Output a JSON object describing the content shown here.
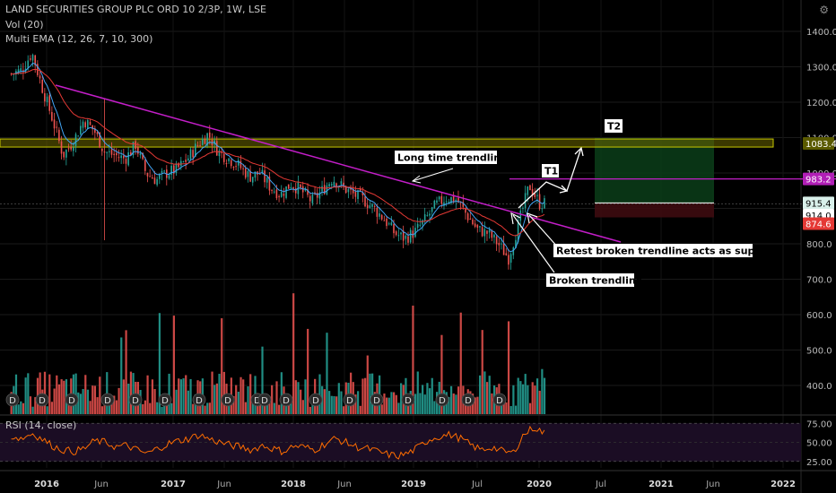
{
  "header": {
    "symbol_line": "LAND SECURITIES GROUP PLC ORD 10 2/3P, 1W, LSE",
    "vol_label": "Vol (20)",
    "ema_label": "Multi EMA (12, 26, 7, 10, 300)",
    "rsi_label": "RSI (14, close)"
  },
  "colors": {
    "up": "#26a69a",
    "down": "#ef5350",
    "trendline": "#c31ec8",
    "zone_border": "#c8c800",
    "target_fill": "#0b3d19",
    "stop_fill": "#3d0b10",
    "rsi_line": "#ff6d00",
    "rsi_band": "#1b0d24",
    "ema_fast": "#42a5f5",
    "ema_slow": "#e53935",
    "t1_line": "#c31ec8"
  },
  "price_axis": {
    "ticks": [
      "1400.0",
      "1300.0",
      "1200.0",
      "1100.0",
      "1000.0",
      "900.0",
      "800.0",
      "700.0",
      "600.0",
      "500.0",
      "400.0"
    ]
  },
  "rsi_axis": {
    "ticks": [
      "75.00",
      "50.00",
      "25.00"
    ]
  },
  "time_axis": {
    "ticks": [
      "2016",
      "Jun",
      "2017",
      "Jun",
      "2018",
      "Jun",
      "2019",
      "Jul",
      "2020",
      "Jul",
      "2021",
      "Jun",
      "2022"
    ]
  },
  "price_badges": [
    {
      "value": "1083.4",
      "style": "zone"
    },
    {
      "value": "983.2",
      "style": "t1"
    },
    {
      "value": "915.4",
      "style": "light"
    },
    {
      "value": "914.0",
      "style": "white"
    },
    {
      "value": "874.6",
      "style": "stop"
    }
  ],
  "annotations": {
    "long_trendline": "Long time trendline",
    "retest": "Retest broken trendline acts as support",
    "broken": "Broken trendline",
    "t1": "T1",
    "t2": "T2"
  },
  "dividend_marker": "D",
  "chart_data": {
    "type": "candlestick",
    "symbol": "LAND SECURITIES GROUP PLC ORD 10 2/3P",
    "interval": "1W",
    "exchange": "LSE",
    "price_range": [
      370,
      1460
    ],
    "x_range": [
      "2015-08",
      "2022-02"
    ],
    "close_anchors": [
      {
        "t": "2015-09",
        "v": 1280
      },
      {
        "t": "2015-10",
        "v": 1290
      },
      {
        "t": "2015-11",
        "v": 1340
      },
      {
        "t": "2015-12",
        "v": 1240
      },
      {
        "t": "2016-01",
        "v": 1150
      },
      {
        "t": "2016-02",
        "v": 1050
      },
      {
        "t": "2016-03",
        "v": 1090
      },
      {
        "t": "2016-04",
        "v": 1150
      },
      {
        "t": "2016-05",
        "v": 1120
      },
      {
        "t": "2016-06",
        "v": 1060
      },
      {
        "t": "2016-07",
        "v": 1050
      },
      {
        "t": "2016-08",
        "v": 1040
      },
      {
        "t": "2016-09",
        "v": 1080
      },
      {
        "t": "2016-10",
        "v": 1000
      },
      {
        "t": "2016-11",
        "v": 980
      },
      {
        "t": "2016-12",
        "v": 1000
      },
      {
        "t": "2017-01",
        "v": 1010
      },
      {
        "t": "2017-02",
        "v": 1040
      },
      {
        "t": "2017-03",
        "v": 1080
      },
      {
        "t": "2017-04",
        "v": 1110
      },
      {
        "t": "2017-05",
        "v": 1060
      },
      {
        "t": "2017-06",
        "v": 1040
      },
      {
        "t": "2017-07",
        "v": 1020
      },
      {
        "t": "2017-08",
        "v": 990
      },
      {
        "t": "2017-09",
        "v": 1000
      },
      {
        "t": "2017-10",
        "v": 960
      },
      {
        "t": "2017-11",
        "v": 940
      },
      {
        "t": "2017-12",
        "v": 970
      },
      {
        "t": "2018-01",
        "v": 950
      },
      {
        "t": "2018-02",
        "v": 920
      },
      {
        "t": "2018-03",
        "v": 950
      },
      {
        "t": "2018-04",
        "v": 985
      },
      {
        "t": "2018-05",
        "v": 960
      },
      {
        "t": "2018-06",
        "v": 940
      },
      {
        "t": "2018-07",
        "v": 925
      },
      {
        "t": "2018-08",
        "v": 900
      },
      {
        "t": "2018-09",
        "v": 870
      },
      {
        "t": "2018-10",
        "v": 830
      },
      {
        "t": "2018-11",
        "v": 815
      },
      {
        "t": "2018-12",
        "v": 835
      },
      {
        "t": "2019-01",
        "v": 870
      },
      {
        "t": "2019-02",
        "v": 910
      },
      {
        "t": "2019-03",
        "v": 930
      },
      {
        "t": "2019-04",
        "v": 925
      },
      {
        "t": "2019-05",
        "v": 880
      },
      {
        "t": "2019-06",
        "v": 840
      },
      {
        "t": "2019-07",
        "v": 830
      },
      {
        "t": "2019-08",
        "v": 800
      },
      {
        "t": "2019-09",
        "v": 760
      },
      {
        "t": "2019-10",
        "v": 860
      },
      {
        "t": "2019-11",
        "v": 965
      },
      {
        "t": "2019-12",
        "v": 914
      }
    ],
    "volume_axis": [],
    "rsi": {
      "levels": [
        75,
        50,
        25
      ],
      "range": [
        20,
        80
      ],
      "series": [
        58,
        55,
        62,
        54,
        45,
        40,
        38,
        42,
        52,
        50,
        44,
        46,
        40,
        35,
        42,
        48,
        52,
        55,
        60,
        54,
        50,
        46,
        44,
        40,
        46,
        42,
        38,
        45,
        44,
        40,
        48,
        55,
        50,
        44,
        42,
        38,
        34,
        32,
        36,
        44,
        54,
        58,
        60,
        55,
        46,
        40,
        44,
        38,
        36,
        60,
        70,
        62
      ]
    },
    "annotations": {
      "zone_level": 1083.4,
      "t1_level": 983.2,
      "entry_level": 915.4,
      "stop_level": 874.6,
      "last_price": 914.0
    }
  }
}
